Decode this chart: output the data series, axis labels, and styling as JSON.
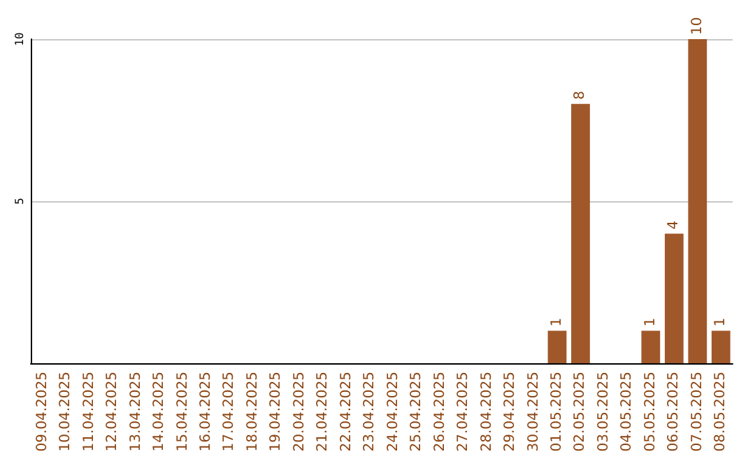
{
  "chart_data": {
    "type": "bar",
    "categories": [
      "09.04.2025",
      "10.04.2025",
      "11.04.2025",
      "12.04.2025",
      "13.04.2025",
      "14.04.2025",
      "15.04.2025",
      "16.04.2025",
      "17.04.2025",
      "18.04.2025",
      "19.04.2025",
      "20.04.2025",
      "21.04.2025",
      "22.04.2025",
      "23.04.2025",
      "24.04.2025",
      "25.04.2025",
      "26.04.2025",
      "27.04.2025",
      "28.04.2025",
      "29.04.2025",
      "30.04.2025",
      "01.05.2025",
      "02.05.2025",
      "03.05.2025",
      "04.05.2025",
      "05.05.2025",
      "06.05.2025",
      "07.05.2025",
      "08.05.2025"
    ],
    "values": [
      0,
      0,
      0,
      0,
      0,
      0,
      0,
      0,
      0,
      0,
      0,
      0,
      0,
      0,
      0,
      0,
      0,
      0,
      0,
      0,
      0,
      0,
      1,
      8,
      0,
      0,
      1,
      4,
      10,
      1
    ],
    "value_labels": [
      null,
      null,
      null,
      null,
      null,
      null,
      null,
      null,
      null,
      null,
      null,
      null,
      null,
      null,
      null,
      null,
      null,
      null,
      null,
      null,
      null,
      null,
      "1",
      "8",
      null,
      null,
      "1",
      "4",
      "10",
      "1"
    ],
    "color": "#a0582a",
    "ylim": [
      0,
      10
    ],
    "yticks": [
      5,
      10
    ],
    "grid": "y"
  }
}
